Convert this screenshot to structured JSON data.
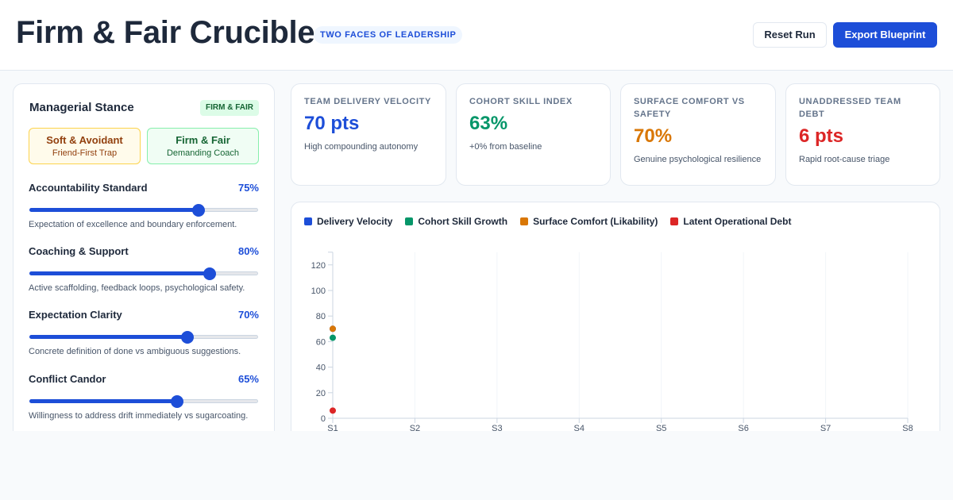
{
  "header": {
    "title": "Firm & Fair Crucible",
    "badge": "TWO FACES OF LEADERSHIP",
    "reset_label": "Reset Run",
    "export_label": "Export Blueprint"
  },
  "stance_panel": {
    "title": "Managerial Stance",
    "mode_badge": "FIRM & FAIR",
    "stances": [
      {
        "name": "Soft & Avoidant",
        "subtitle": "Friend-First Trap"
      },
      {
        "name": "Firm & Fair",
        "subtitle": "Demanding Coach"
      }
    ],
    "sliders": [
      {
        "label": "Accountability Standard",
        "value": 75,
        "value_text": "75%",
        "help": "Expectation of excellence and boundary enforcement."
      },
      {
        "label": "Coaching & Support",
        "value": 80,
        "value_text": "80%",
        "help": "Active scaffolding, feedback loops, psychological safety."
      },
      {
        "label": "Expectation Clarity",
        "value": 70,
        "value_text": "70%",
        "help": "Concrete definition of done vs ambiguous suggestions."
      },
      {
        "label": "Conflict Candor",
        "value": 65,
        "value_text": "65%",
        "help": "Willingness to address drift immediately vs sugarcoating."
      }
    ]
  },
  "metrics": [
    {
      "label": "TEAM DELIVERY VELOCITY",
      "value": "70 pts",
      "note": "High compounding autonomy",
      "color": "#1d4ed8"
    },
    {
      "label": "COHORT SKILL INDEX",
      "value": "63%",
      "note": "+0% from baseline",
      "color": "#059669"
    },
    {
      "label": "SURFACE COMFORT VS SAFETY",
      "value": "70%",
      "note": "Genuine psychological resilience",
      "color": "#d97706"
    },
    {
      "label": "UNADDRESSED TEAM DEBT",
      "value": "6 pts",
      "note": "Rapid root-cause triage",
      "color": "#dc2626"
    }
  ],
  "chart_data": {
    "type": "scatter",
    "categories": [
      "S1",
      "S2",
      "S3",
      "S4",
      "S5",
      "S6",
      "S7",
      "S8"
    ],
    "ylim": [
      0,
      130
    ],
    "yticks": [
      0,
      20,
      40,
      60,
      80,
      100,
      120
    ],
    "grid": true,
    "legend": "top-left",
    "series": [
      {
        "name": "Delivery Velocity",
        "color": "#1d4ed8",
        "values": [
          70
        ]
      },
      {
        "name": "Cohort Skill Growth",
        "color": "#059669",
        "values": [
          63
        ]
      },
      {
        "name": "Surface Comfort (Likability)",
        "color": "#d97706",
        "values": [
          70
        ]
      },
      {
        "name": "Latent Operational Debt",
        "color": "#dc2626",
        "values": [
          6
        ]
      }
    ]
  }
}
